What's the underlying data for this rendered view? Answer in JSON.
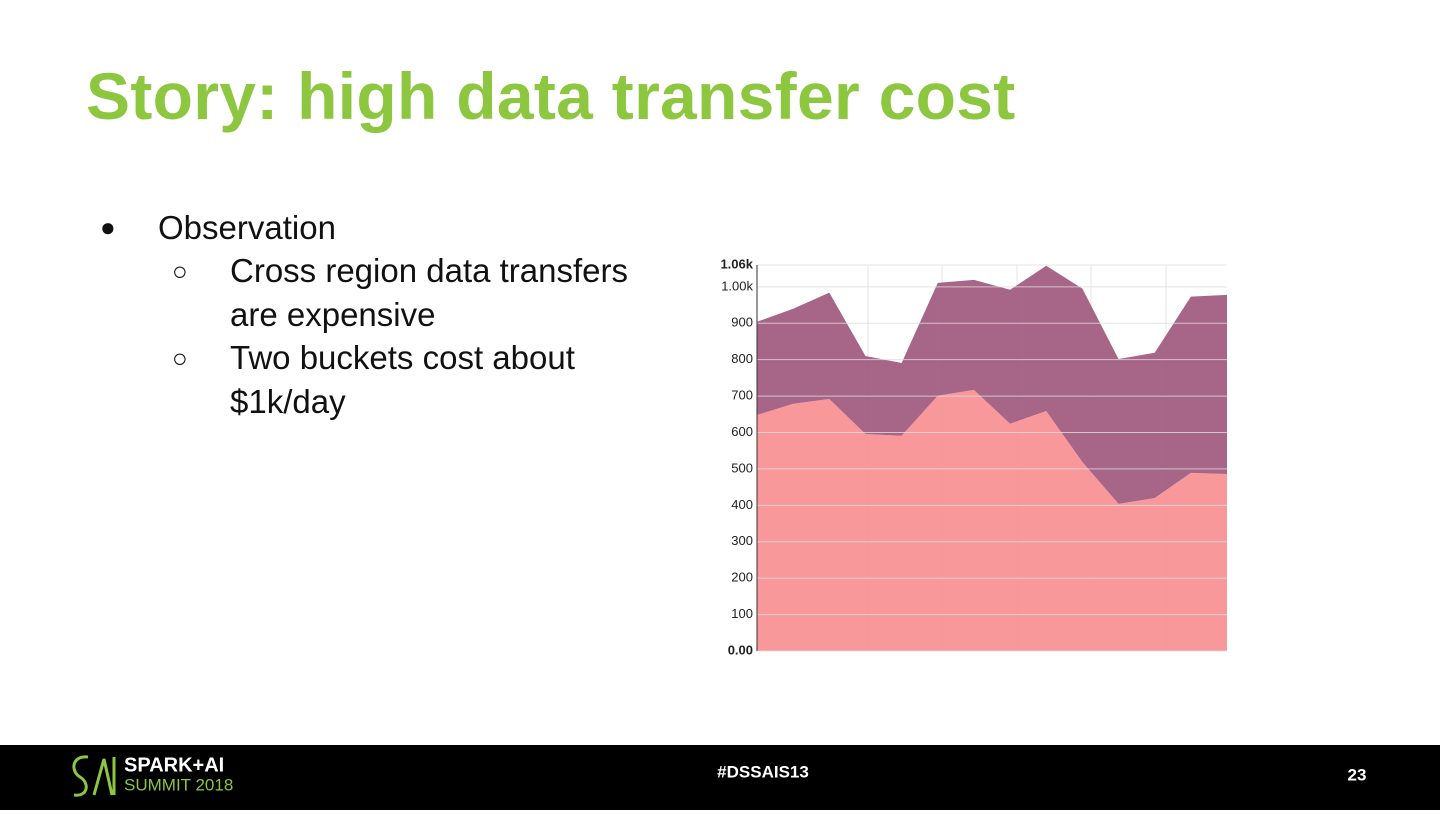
{
  "slide": {
    "title": "Story: high data transfer cost",
    "bullets": [
      {
        "text": "Observation",
        "children": [
          "Cross region data transfers are expensive",
          "Two buckets cost about $1k/day"
        ]
      }
    ],
    "footer": {
      "logo_line1": "SPARK+AI",
      "logo_line2": "SUMMIT 2018",
      "hashtag": "#DSSAIS13",
      "page": "23"
    }
  },
  "chart_data": {
    "type": "stacked_area",
    "categories": [
      null,
      null,
      null,
      null,
      null,
      null,
      null,
      null,
      null,
      null,
      null,
      null,
      null,
      null
    ],
    "series": [
      {
        "name": null,
        "color": "#f98f93",
        "values": [
          648,
          679,
          692,
          596,
          591,
          701,
          717,
          624,
          659,
          519,
          404,
          420,
          489,
          486
        ]
      },
      {
        "name": null,
        "color": "#a0587e",
        "values": [
          256,
          261,
          292,
          214,
          200,
          310,
          302,
          368,
          399,
          476,
          398,
          399,
          484,
          492
        ]
      }
    ],
    "ylim": [
      0,
      1060
    ],
    "yticks": [
      {
        "value": 0,
        "label": "0.00"
      },
      100,
      200,
      300,
      400,
      500,
      600,
      700,
      800,
      900,
      {
        "value": 1000,
        "label": "1.00k"
      },
      {
        "value": 1060,
        "label": "1.06k"
      }
    ],
    "grid": true
  }
}
